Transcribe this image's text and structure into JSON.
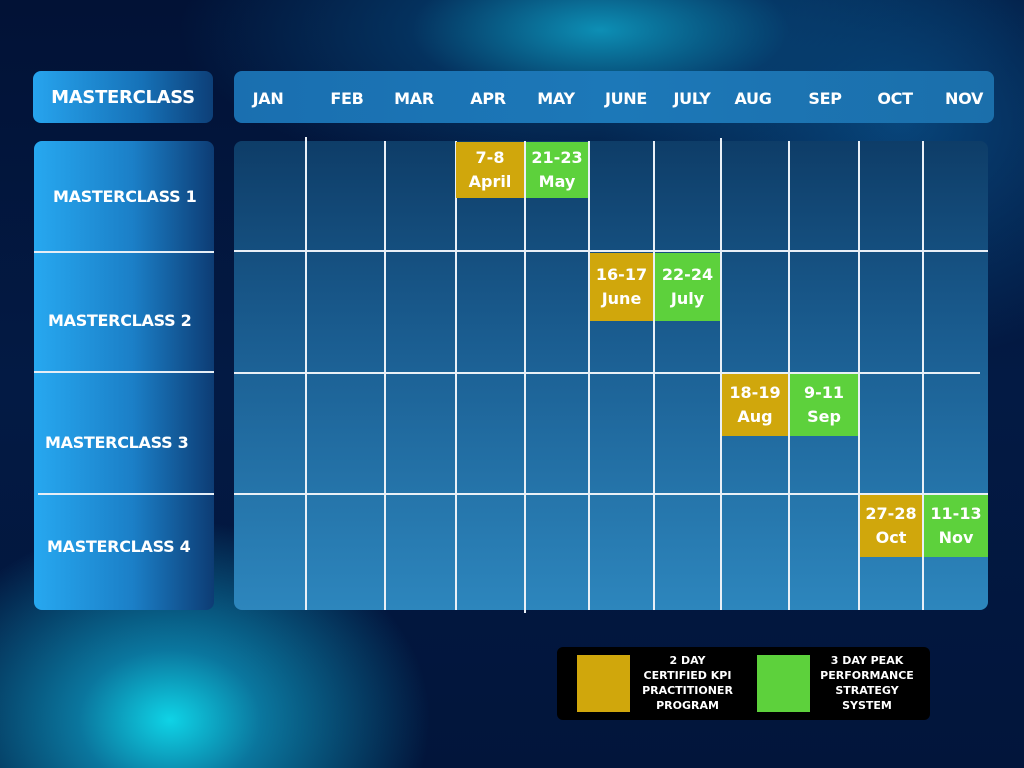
{
  "header": {
    "title": "MASTERCLASS"
  },
  "months": [
    "JAN",
    "FEB",
    "MAR",
    "APR",
    "MAY",
    "JUNE",
    "JULY",
    "AUG",
    "SEP",
    "OCT",
    "NOV"
  ],
  "rows": [
    "MASTERCLASS 1",
    "MASTERCLASS 2",
    "MASTERCLASS 3",
    "MASTERCLASS 4"
  ],
  "colors": {
    "kpi": "#d0a70c",
    "peak": "#5dd13c"
  },
  "events": [
    {
      "row": "MASTERCLASS 1",
      "month": "APR",
      "program": "kpi",
      "dates": "7-8",
      "label": "April"
    },
    {
      "row": "MASTERCLASS 1",
      "month": "MAY",
      "program": "peak",
      "dates": "21-23",
      "label": "May"
    },
    {
      "row": "MASTERCLASS 2",
      "month": "JUNE",
      "program": "kpi",
      "dates": "16-17",
      "label": "June"
    },
    {
      "row": "MASTERCLASS 2",
      "month": "JULY",
      "program": "peak",
      "dates": "22-24",
      "label": "July"
    },
    {
      "row": "MASTERCLASS 3",
      "month": "AUG",
      "program": "kpi",
      "dates": "18-19",
      "label": "Aug"
    },
    {
      "row": "MASTERCLASS 3",
      "month": "SEP",
      "program": "peak",
      "dates": "9-11",
      "label": "Sep"
    },
    {
      "row": "MASTERCLASS 4",
      "month": "OCT",
      "program": "kpi",
      "dates": "27-28",
      "label": "Oct"
    },
    {
      "row": "MASTERCLASS 4",
      "month": "NOV",
      "program": "peak",
      "dates": "11-13",
      "label": "Nov"
    }
  ],
  "legend": {
    "kpi": {
      "text": "2 DAY\nCERTIFIED KPI\nPRACTITIONER\nPROGRAM"
    },
    "peak": {
      "text": "3 DAY PEAK\nPERFORMANCE\nSTRATEGY\nSYSTEM"
    }
  }
}
